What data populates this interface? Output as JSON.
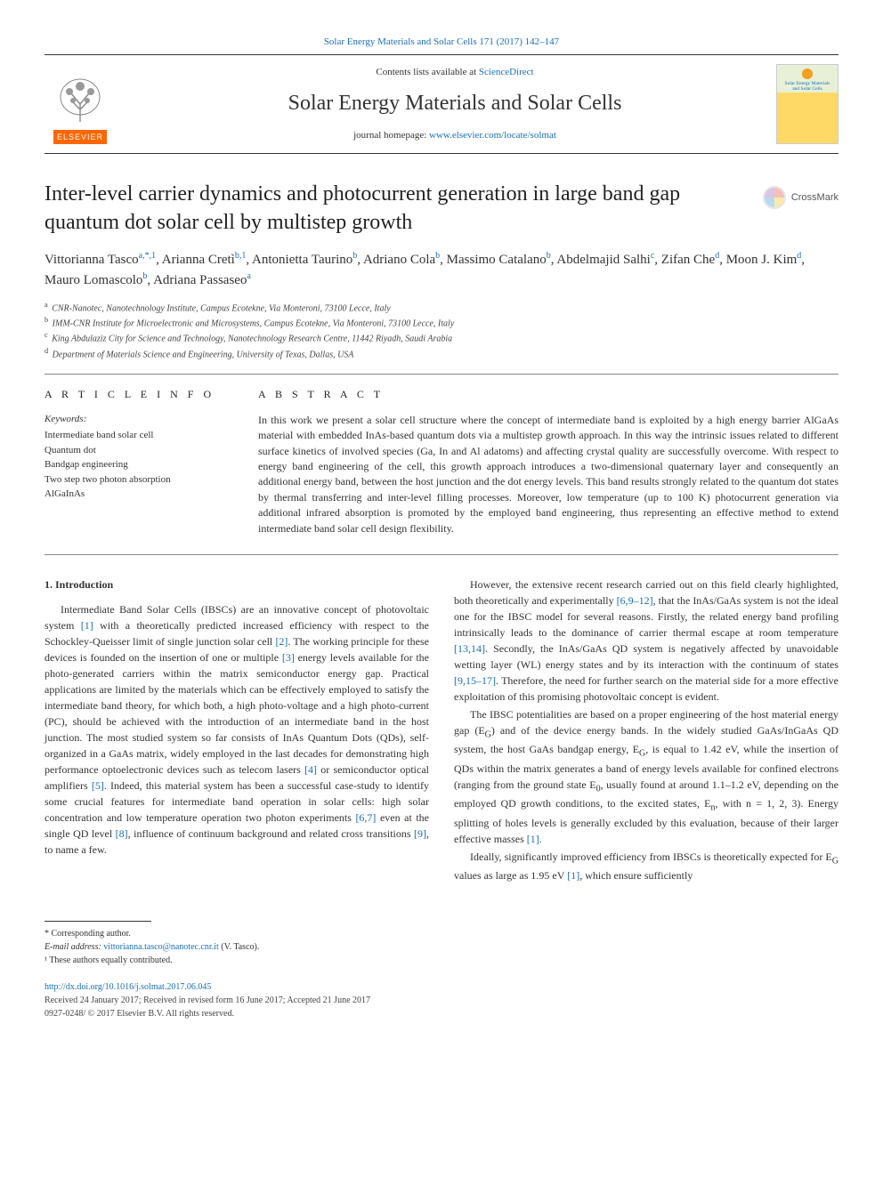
{
  "header": {
    "top_link_prefix": "Solar Energy Materials and Solar Cells 171 (2017) 142–147",
    "contents_prefix": "Contents lists available at ",
    "contents_link": "ScienceDirect",
    "journal_name": "Solar Energy Materials and Solar Cells",
    "homepage_prefix": "journal homepage: ",
    "homepage_link": "www.elsevier.com/locate/solmat",
    "elsevier_label": "ELSEVIER",
    "cover_title": "Solar Energy Materials and Solar Cells",
    "crossmark": "CrossMark"
  },
  "article": {
    "title": "Inter-level carrier dynamics and photocurrent generation in large band gap quantum dot solar cell by multistep growth"
  },
  "authors_html": "Vittorianna Tasco<sup>a,*,1</sup>, Arianna Cretì<sup>b,1</sup>, Antonietta Taurino<sup>b</sup>, Adriano Cola<sup>b</sup>, Massimo Catalano<sup>b</sup>, Abdelmajid Salhi<sup>c</sup>, Zifan Che<sup>d</sup>, Moon J. Kim<sup>d</sup>, Mauro Lomascolo<sup>b</sup>, Adriana Passaseo<sup>a</sup>",
  "affiliations": [
    {
      "sup": "a",
      "text": "CNR-Nanotec, Nanotechnology Institute, Campus Ecotekne, Via Monteroni, 73100 Lecce, Italy"
    },
    {
      "sup": "b",
      "text": "IMM-CNR Institute for Microelectronic and Microsystems, Campus Ecotekne, Via Monteroni, 73100 Lecce, Italy"
    },
    {
      "sup": "c",
      "text": "King Abdulaziz City for Science and Technology, Nanotechnology Research Centre, 11442 Riyadh, Saudi Arabia"
    },
    {
      "sup": "d",
      "text": "Department of Materials Science and Engineering, University of Texas, Dallas, USA"
    }
  ],
  "info": {
    "heading": "A R T I C L E  I N F O",
    "keywords_label": "Keywords:",
    "keywords": [
      "Intermediate band solar cell",
      "Quantum dot",
      "Bandgap engineering",
      "Two step two photon absorption",
      "AlGaInAs"
    ]
  },
  "abstract": {
    "heading": "A B S T R A C T",
    "text": "In this work we present a solar cell structure where the concept of intermediate band is exploited by a high energy barrier AlGaAs material with embedded InAs-based quantum dots via a multistep growth approach. In this way the intrinsic issues related to different surface kinetics of involved species (Ga, In and Al adatoms) and affecting crystal quality are successfully overcome. With respect to energy band engineering of the cell, this growth approach introduces a two-dimensional quaternary layer and consequently an additional energy band, between the host junction and the dot energy levels. This band results strongly related to the quantum dot states by thermal transferring and inter-level filling processes. Moreover, low temperature (up to 100 K) photocurrent generation via additional infrared absorption is promoted by the employed band engineering, thus representing an effective method to extend intermediate band solar cell design flexibility."
  },
  "body": {
    "intro_heading": "1. Introduction",
    "left_paragraphs": [
      "Intermediate Band Solar Cells (IBSCs) are an innovative concept of photovoltaic system <span class='ref'>[1]</span> with a theoretically predicted increased efficiency with respect to the Schockley-Queisser limit of single junction solar cell <span class='ref'>[2]</span>. The working principle for these devices is founded on the insertion of one or multiple <span class='ref'>[3]</span> energy levels available for the photo-generated carriers within the matrix semiconductor energy gap. Practical applications are limited by the materials which can be effectively employed to satisfy the intermediate band theory, for which both, a high photo-voltage and a high photo-current (PC), should be achieved with the introduction of an intermediate band in the host junction. The most studied system so far consists of InAs Quantum Dots (QDs), self-organized in a GaAs matrix, widely employed in the last decades for demonstrating high performance optoelectronic devices such as telecom lasers <span class='ref'>[4]</span> or semiconductor optical amplifiers <span class='ref'>[5]</span>. Indeed, this material system has been a successful case-study to identify some crucial features for intermediate band operation in solar cells: high solar concentration and low temperature operation two photon experiments <span class='ref'>[6,7]</span> even at the single QD level <span class='ref'>[8]</span>, influence of continuum background and related cross transitions <span class='ref'>[9]</span>, to name a few."
    ],
    "right_paragraphs": [
      "However, the extensive recent research carried out on this field clearly highlighted, both theoretically and experimentally <span class='ref'>[6,9–12]</span>, that the InAs/GaAs system is not the ideal one for the IBSC model for several reasons. Firstly, the related energy band profiling intrinsically leads to the dominance of carrier thermal escape at room temperature <span class='ref'>[13,14]</span>. Secondly, the InAs/GaAs QD system is negatively affected by unavoidable wetting layer (WL) energy states and by its interaction with the continuum of states <span class='ref'>[9,15–17]</span>. Therefore, the need for further search on the material side for a more effective exploitation of this promising photovoltaic concept is evident.",
      "The IBSC potentialities are based on a proper engineering of the host material energy gap (E<sub>G</sub>) and of the device energy bands. In the widely studied GaAs/InGaAs QD system, the host GaAs bandgap energy, E<sub>G</sub>, is equal to 1.42 eV, while the insertion of QDs within the matrix generates a band of energy levels available for confined electrons (ranging from the ground state E<sub>0</sub>, usually found at around 1.1–1.2 eV, depending on the employed QD growth conditions, to the excited states, E<sub>n</sub>, with n = 1, 2, 3). Energy splitting of holes levels is generally excluded by this evaluation, because of their larger effective masses <span class='ref'>[1]</span>.",
      "Ideally, significantly improved efficiency from IBSCs is theoretically expected for E<sub>G</sub> values as large as 1.95 eV <span class='ref'>[1]</span>, which ensure sufficiently"
    ]
  },
  "footer": {
    "corr": "* Corresponding author.",
    "email_label": "E-mail address: ",
    "email": "vittorianna.tasco@nanotec.cnr.it",
    "email_suffix": " (V. Tasco).",
    "equal": "¹ These authors equally contributed.",
    "doi": "http://dx.doi.org/10.1016/j.solmat.2017.06.045",
    "received": "Received 24 January 2017; Received in revised form 16 June 2017; Accepted 21 June 2017",
    "issn": "0927-0248/ © 2017 Elsevier B.V. All rights reserved."
  },
  "colors": {
    "link": "#1a6fb8",
    "text": "#333333",
    "elsevier_orange": "#ff6600",
    "border": "#333333"
  }
}
